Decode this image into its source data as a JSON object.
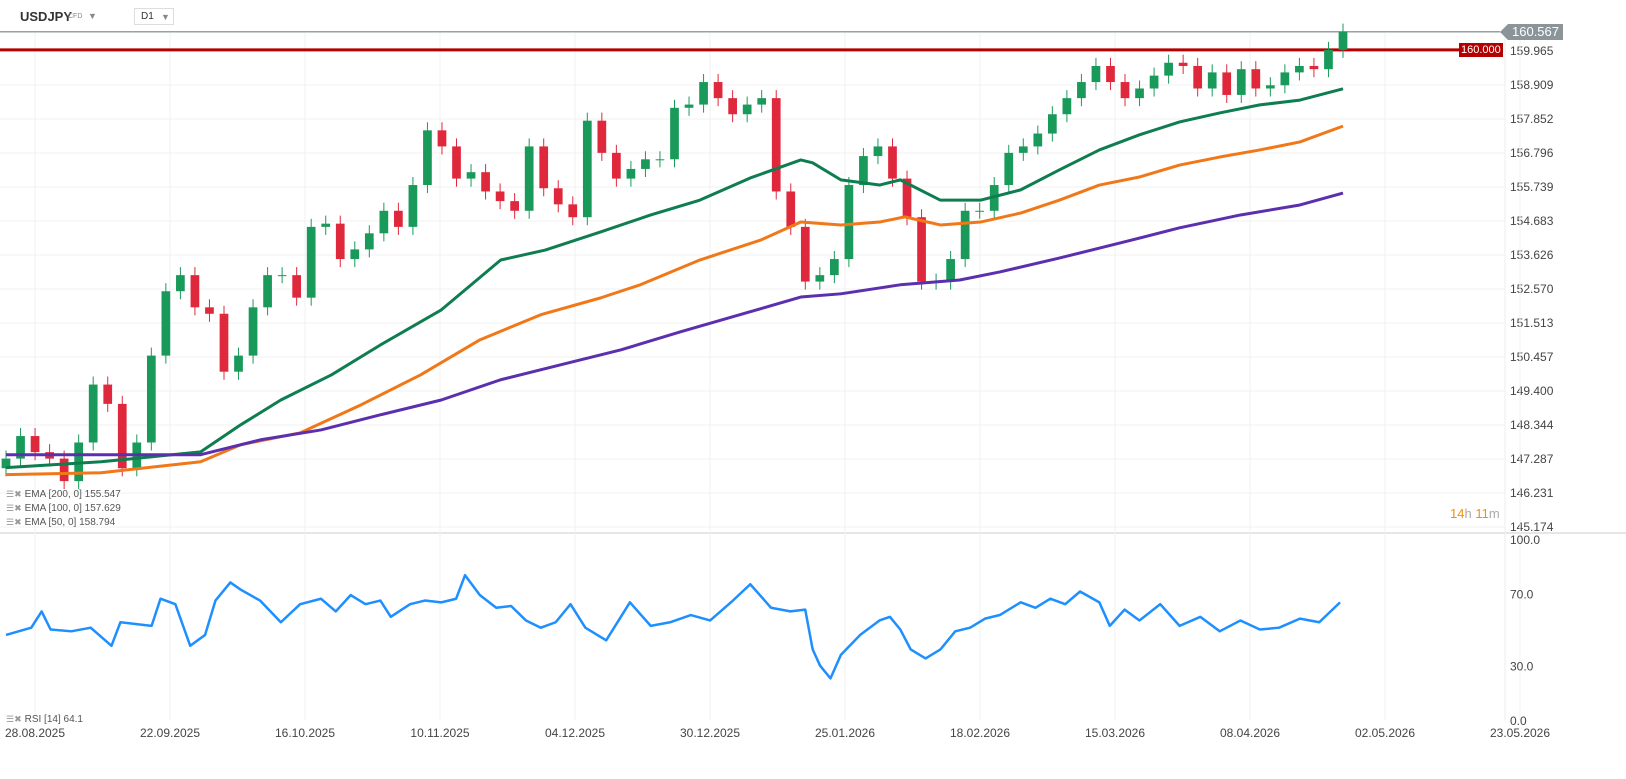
{
  "header": {
    "symbol": "USDJPY",
    "instrument_type": "CFD",
    "timeframe": "D1"
  },
  "price_tag": {
    "current": "160.567",
    "level_label": "160.000"
  },
  "countdown": {
    "hours": "14",
    "h": "h",
    "minutes": "11",
    "m": "m"
  },
  "legends": [
    {
      "label": "EMA [200, 0] 155.547"
    },
    {
      "label": "EMA [100, 0] 157.629"
    },
    {
      "label": "EMA [50, 0] 158.794"
    },
    {
      "label": "RSI [14] 64.1"
    }
  ],
  "colors": {
    "up": "#1a9a5a",
    "down": "#e0283c",
    "ema50": "#0e7d4f",
    "ema100": "#f07818",
    "ema200": "#5b2fae",
    "rsi": "#1e8fff",
    "level": "#b40000",
    "price_tag": "#8a9499"
  },
  "chart_data": [
    {
      "type": "candlestick",
      "y_ticks": [
        "159.965",
        "158.909",
        "157.852",
        "156.796",
        "155.739",
        "154.683",
        "153.626",
        "152.570",
        "151.513",
        "150.457",
        "149.400",
        "148.344",
        "147.287",
        "146.231",
        "145.174"
      ],
      "ylim": [
        145.174,
        159.965
      ],
      "x_ticks": [
        "28.08.2025",
        "22.09.2025",
        "16.10.2025",
        "10.11.2025",
        "04.12.2025",
        "30.12.2025",
        "25.01.2026",
        "18.02.2026",
        "15.03.2026",
        "08.04.2026",
        "02.05.2026",
        "23.05.2026"
      ],
      "closes": [
        147.3,
        148.0,
        147.5,
        147.3,
        146.6,
        147.8,
        149.6,
        149.0,
        147.0,
        147.8,
        150.5,
        152.5,
        153.0,
        152.0,
        151.8,
        150.0,
        150.5,
        152.0,
        153.0,
        153.0,
        152.3,
        154.5,
        154.6,
        153.5,
        153.8,
        154.3,
        155.0,
        154.5,
        155.8,
        157.5,
        157.0,
        156.0,
        156.2,
        155.6,
        155.3,
        155.0,
        157.0,
        155.7,
        155.2,
        154.8,
        157.8,
        156.8,
        156.0,
        156.3,
        156.6,
        156.6,
        158.2,
        158.3,
        159.0,
        158.5,
        158.0,
        158.3,
        158.5,
        155.6,
        154.5,
        152.8,
        153.0,
        153.5,
        155.8,
        156.7,
        157.0,
        156.0,
        154.8,
        152.8,
        152.8,
        153.5,
        155.0,
        155.0,
        155.8,
        156.8,
        157.0,
        157.4,
        158.0,
        158.5,
        159.0,
        159.5,
        159.0,
        158.5,
        158.8,
        159.2,
        159.6,
        159.5,
        158.8,
        159.3,
        158.6,
        159.4,
        158.8,
        158.9,
        159.3,
        159.5,
        159.4,
        160.0,
        160.567
      ],
      "horizontal_level": 160.0,
      "current_price": 160.567,
      "series": [
        {
          "name": "EMA [50, 0]",
          "points": [
            [
              0,
              147.02
            ],
            [
              6.4,
              147.2
            ],
            [
              13.1,
              147.51
            ],
            [
              15.8,
              148.35
            ],
            [
              18.5,
              149.12
            ],
            [
              21.9,
              149.9
            ],
            [
              25.2,
              150.83
            ],
            [
              29.3,
              151.92
            ],
            [
              33.3,
              153.47
            ],
            [
              36.3,
              153.78
            ],
            [
              40,
              154.34
            ],
            [
              43.4,
              154.87
            ],
            [
              46.7,
              155.33
            ],
            [
              50.1,
              156.02
            ],
            [
              53.5,
              156.58
            ],
            [
              54.3,
              156.49
            ],
            [
              56.2,
              155.96
            ],
            [
              58.8,
              155.8
            ],
            [
              60.2,
              155.96
            ],
            [
              62.9,
              155.33
            ],
            [
              65.6,
              155.33
            ],
            [
              68.3,
              155.65
            ],
            [
              70.9,
              156.27
            ],
            [
              73.6,
              156.89
            ],
            [
              76.3,
              157.36
            ],
            [
              79,
              157.76
            ],
            [
              81.7,
              158.04
            ],
            [
              84.4,
              158.29
            ],
            [
              87.1,
              158.44
            ],
            [
              90,
              158.79
            ]
          ]
        },
        {
          "name": "EMA [100, 0]",
          "points": [
            [
              0,
              146.8
            ],
            [
              6.4,
              146.86
            ],
            [
              13.1,
              147.2
            ],
            [
              15.8,
              147.73
            ],
            [
              19.8,
              148.1
            ],
            [
              23.9,
              148.97
            ],
            [
              27.9,
              149.9
            ],
            [
              31.9,
              150.99
            ],
            [
              36,
              151.77
            ],
            [
              40,
              152.29
            ],
            [
              42.7,
              152.7
            ],
            [
              46.7,
              153.47
            ],
            [
              50.8,
              154.09
            ],
            [
              53.5,
              154.65
            ],
            [
              56.2,
              154.56
            ],
            [
              58.8,
              154.65
            ],
            [
              60.5,
              154.81
            ],
            [
              62.9,
              154.56
            ],
            [
              65.6,
              154.65
            ],
            [
              68.3,
              154.93
            ],
            [
              70.9,
              155.33
            ],
            [
              73.6,
              155.8
            ],
            [
              76.3,
              156.05
            ],
            [
              79,
              156.42
            ],
            [
              81.7,
              156.67
            ],
            [
              84.4,
              156.89
            ],
            [
              87.1,
              157.14
            ],
            [
              90,
              157.63
            ]
          ]
        },
        {
          "name": "EMA [200, 0]",
          "points": [
            [
              0,
              147.42
            ],
            [
              13.1,
              147.42
            ],
            [
              17.1,
              147.88
            ],
            [
              21.2,
              148.19
            ],
            [
              25.2,
              148.66
            ],
            [
              29.3,
              149.12
            ],
            [
              33.3,
              149.75
            ],
            [
              37.3,
              150.21
            ],
            [
              41.4,
              150.68
            ],
            [
              45.4,
              151.24
            ],
            [
              49.4,
              151.77
            ],
            [
              53.5,
              152.32
            ],
            [
              56.2,
              152.42
            ],
            [
              60.2,
              152.7
            ],
            [
              64.2,
              152.85
            ],
            [
              66.9,
              153.1
            ],
            [
              70.9,
              153.53
            ],
            [
              75,
              154.0
            ],
            [
              79,
              154.47
            ],
            [
              83.1,
              154.87
            ],
            [
              87.1,
              155.18
            ],
            [
              90,
              155.55
            ]
          ]
        }
      ]
    },
    {
      "type": "line",
      "y_ticks": [
        "100.0",
        "70.0",
        "30.0",
        "0.0"
      ],
      "ylim": [
        0,
        100
      ],
      "series": [
        {
          "name": "RSI [14]",
          "points": [
            [
              0,
              47
            ],
            [
              1.7,
              51
            ],
            [
              2.4,
              60
            ],
            [
              3.0,
              50
            ],
            [
              4.4,
              49
            ],
            [
              5.7,
              51
            ],
            [
              7.1,
              41
            ],
            [
              7.7,
              54
            ],
            [
              9.8,
              52
            ],
            [
              10.4,
              67
            ],
            [
              11.4,
              64
            ],
            [
              12.4,
              41
            ],
            [
              13.4,
              47
            ],
            [
              14.1,
              66
            ],
            [
              15.1,
              76
            ],
            [
              15.8,
              72
            ],
            [
              17.1,
              66
            ],
            [
              18.5,
              54
            ],
            [
              19.8,
              64
            ],
            [
              21.2,
              67
            ],
            [
              22.2,
              60
            ],
            [
              23.2,
              69
            ],
            [
              24.2,
              64
            ],
            [
              25.2,
              66
            ],
            [
              25.9,
              57
            ],
            [
              27.2,
              64
            ],
            [
              28.2,
              66
            ],
            [
              29.3,
              65
            ],
            [
              30.3,
              67
            ],
            [
              30.9,
              80
            ],
            [
              31.9,
              69
            ],
            [
              33,
              62
            ],
            [
              34,
              63
            ],
            [
              35,
              55
            ],
            [
              36,
              51
            ],
            [
              37,
              54
            ],
            [
              38,
              64
            ],
            [
              39,
              51
            ],
            [
              40.4,
              44
            ],
            [
              42,
              65
            ],
            [
              43.4,
              52
            ],
            [
              44.7,
              54
            ],
            [
              46.1,
              58
            ],
            [
              47.4,
              55
            ],
            [
              48.8,
              65
            ],
            [
              50.1,
              75
            ],
            [
              51.5,
              62
            ],
            [
              52.8,
              60
            ],
            [
              53.8,
              61
            ],
            [
              54.3,
              39
            ],
            [
              54.8,
              30
            ],
            [
              55.5,
              23
            ],
            [
              56.2,
              36
            ],
            [
              57.5,
              47
            ],
            [
              58.8,
              55
            ],
            [
              59.5,
              57
            ],
            [
              60.2,
              50
            ],
            [
              60.9,
              39
            ],
            [
              61.9,
              34
            ],
            [
              62.9,
              39
            ],
            [
              63.9,
              49
            ],
            [
              64.9,
              51
            ],
            [
              65.9,
              56
            ],
            [
              66.9,
              58
            ],
            [
              68.3,
              65
            ],
            [
              69.3,
              62
            ],
            [
              70.3,
              67
            ],
            [
              71.3,
              64
            ],
            [
              72.3,
              71
            ],
            [
              73.6,
              65
            ],
            [
              74.3,
              52
            ],
            [
              75.3,
              61
            ],
            [
              76.3,
              55
            ],
            [
              77.7,
              64
            ],
            [
              79,
              52
            ],
            [
              80.4,
              57
            ],
            [
              81.7,
              49
            ],
            [
              83.1,
              55
            ],
            [
              84.4,
              50
            ],
            [
              85.7,
              51
            ],
            [
              87.1,
              56
            ],
            [
              88.4,
              54
            ],
            [
              89.8,
              65
            ]
          ]
        }
      ]
    }
  ]
}
